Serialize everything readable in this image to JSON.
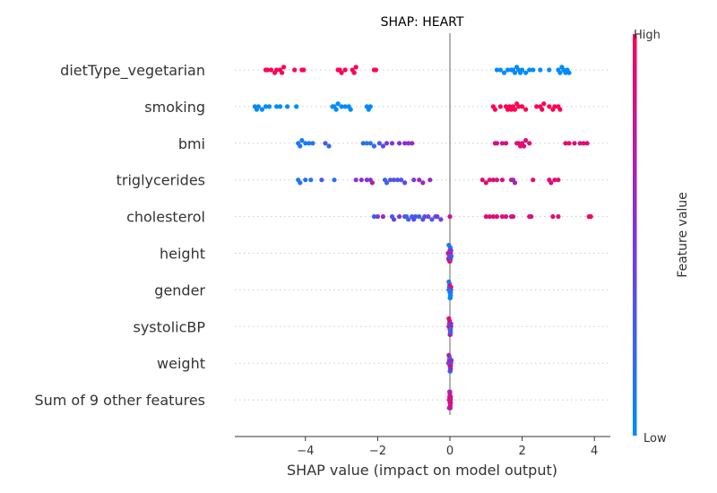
{
  "chart_data": {
    "type": "scatter",
    "title": "SHAP: HEART",
    "xlabel": "SHAP value (impact on model output)",
    "xlim": [
      -5.9,
      4.45
    ],
    "xticks": [
      -4,
      -2,
      0,
      2,
      4
    ],
    "xtick_labels": [
      "−4",
      "−2",
      "0",
      "2",
      "4"
    ],
    "grid": false,
    "colorbar": {
      "label": "Feature value",
      "high_label": "High",
      "low_label": "Low",
      "low_color": "#008bfb",
      "high_color": "#ff0052"
    },
    "features": [
      {
        "name": "dietType_vegetarian",
        "points": [
          [
            -5.1,
            1
          ],
          [
            -5.05,
            1
          ],
          [
            -4.95,
            0.95
          ],
          [
            -4.85,
            1
          ],
          [
            -4.8,
            1
          ],
          [
            -4.7,
            1
          ],
          [
            -4.65,
            0.95
          ],
          [
            -4.6,
            1
          ],
          [
            -4.3,
            1
          ],
          [
            -4.1,
            0.95
          ],
          [
            -4.05,
            1
          ],
          [
            -3.1,
            1
          ],
          [
            -3.05,
            1
          ],
          [
            -3.0,
            0.95
          ],
          [
            -2.9,
            1
          ],
          [
            -2.7,
            1
          ],
          [
            -2.65,
            1
          ],
          [
            -2.6,
            0.95
          ],
          [
            -2.1,
            1
          ],
          [
            -2.05,
            1
          ],
          [
            1.3,
            0
          ],
          [
            1.4,
            0
          ],
          [
            1.5,
            0
          ],
          [
            1.6,
            0
          ],
          [
            1.7,
            0
          ],
          [
            1.75,
            0
          ],
          [
            1.8,
            0
          ],
          [
            1.85,
            0
          ],
          [
            1.9,
            0
          ],
          [
            1.95,
            0
          ],
          [
            2.0,
            0
          ],
          [
            2.1,
            0
          ],
          [
            2.2,
            0
          ],
          [
            2.3,
            0
          ],
          [
            2.5,
            0
          ],
          [
            2.75,
            0
          ],
          [
            3.0,
            0
          ],
          [
            3.05,
            0
          ],
          [
            3.1,
            0
          ],
          [
            3.15,
            0
          ],
          [
            3.2,
            0
          ],
          [
            3.25,
            0
          ],
          [
            3.3,
            0
          ]
        ]
      },
      {
        "name": "smoking",
        "points": [
          [
            -5.4,
            0
          ],
          [
            -5.35,
            0
          ],
          [
            -5.3,
            0
          ],
          [
            -5.2,
            0
          ],
          [
            -5.1,
            0
          ],
          [
            -5.0,
            0
          ],
          [
            -4.8,
            0
          ],
          [
            -4.7,
            0
          ],
          [
            -4.5,
            0
          ],
          [
            -4.25,
            0
          ],
          [
            -3.25,
            0
          ],
          [
            -3.2,
            0
          ],
          [
            -3.15,
            0
          ],
          [
            -3.1,
            0
          ],
          [
            -3.0,
            0
          ],
          [
            -2.9,
            0
          ],
          [
            -2.8,
            0
          ],
          [
            -2.75,
            0
          ],
          [
            -2.3,
            0
          ],
          [
            -2.25,
            0
          ],
          [
            -2.2,
            0
          ],
          [
            1.2,
            1
          ],
          [
            1.25,
            1
          ],
          [
            1.4,
            1
          ],
          [
            1.55,
            1
          ],
          [
            1.6,
            1
          ],
          [
            1.65,
            1
          ],
          [
            1.7,
            1
          ],
          [
            1.75,
            1
          ],
          [
            1.8,
            1
          ],
          [
            1.85,
            1
          ],
          [
            1.9,
            1
          ],
          [
            2.0,
            1
          ],
          [
            2.1,
            1
          ],
          [
            2.4,
            1
          ],
          [
            2.5,
            1
          ],
          [
            2.55,
            0.95
          ],
          [
            2.6,
            1
          ],
          [
            2.75,
            1
          ],
          [
            2.85,
            1
          ],
          [
            2.9,
            1
          ],
          [
            3.0,
            1
          ],
          [
            3.05,
            1
          ]
        ]
      },
      {
        "name": "bmi",
        "points": [
          [
            -4.2,
            0.1
          ],
          [
            -4.15,
            0.15
          ],
          [
            -4.1,
            0.1
          ],
          [
            -4.0,
            0.15
          ],
          [
            -3.9,
            0.1
          ],
          [
            -3.8,
            0.15
          ],
          [
            -3.45,
            0.3
          ],
          [
            -3.35,
            0.2
          ],
          [
            -2.4,
            0.2
          ],
          [
            -2.3,
            0.15
          ],
          [
            -2.2,
            0.15
          ],
          [
            -2.1,
            0.2
          ],
          [
            -1.95,
            0.3
          ],
          [
            -1.85,
            0.4
          ],
          [
            -1.75,
            0.45
          ],
          [
            -1.6,
            0.5
          ],
          [
            -1.4,
            0.55
          ],
          [
            -1.25,
            0.6
          ],
          [
            -1.15,
            0.55
          ],
          [
            -1.05,
            0.6
          ],
          [
            1.25,
            0.9
          ],
          [
            1.3,
            0.85
          ],
          [
            1.45,
            0.8
          ],
          [
            1.55,
            0.85
          ],
          [
            1.85,
            0.9
          ],
          [
            1.9,
            0.85
          ],
          [
            1.95,
            0.9
          ],
          [
            2.0,
            0.85
          ],
          [
            2.05,
            0.9
          ],
          [
            2.1,
            0.85
          ],
          [
            2.2,
            0.9
          ],
          [
            3.2,
            0.9
          ],
          [
            3.3,
            0.95
          ],
          [
            3.45,
            0.85
          ],
          [
            3.6,
            0.8
          ],
          [
            3.7,
            0.85
          ],
          [
            3.8,
            0.9
          ]
        ]
      },
      {
        "name": "triglycerides",
        "points": [
          [
            -4.2,
            0.1
          ],
          [
            -4.15,
            0.15
          ],
          [
            -4.0,
            0.2
          ],
          [
            -3.85,
            0.1
          ],
          [
            -3.55,
            0.3
          ],
          [
            -3.2,
            0.15
          ],
          [
            -2.6,
            0.5
          ],
          [
            -2.45,
            0.6
          ],
          [
            -2.3,
            0.5
          ],
          [
            -2.2,
            0.55
          ],
          [
            -2.15,
            0.7
          ],
          [
            -1.8,
            0.2
          ],
          [
            -1.75,
            0.25
          ],
          [
            -1.65,
            0.3
          ],
          [
            -1.55,
            0.35
          ],
          [
            -1.45,
            0.3
          ],
          [
            -1.35,
            0.35
          ],
          [
            -1.25,
            0.4
          ],
          [
            -1.0,
            0.5
          ],
          [
            -0.85,
            0.6
          ],
          [
            -0.75,
            0.65
          ],
          [
            -0.55,
            0.6
          ],
          [
            0.9,
            0.9
          ],
          [
            1.0,
            0.85
          ],
          [
            1.1,
            0.9
          ],
          [
            1.2,
            0.85
          ],
          [
            1.3,
            0.9
          ],
          [
            1.45,
            0.85
          ],
          [
            1.7,
            0.7
          ],
          [
            1.75,
            0.65
          ],
          [
            1.8,
            0.65
          ],
          [
            2.3,
            0.9
          ],
          [
            2.75,
            0.9
          ],
          [
            2.8,
            0.85
          ],
          [
            2.9,
            0.9
          ],
          [
            3.0,
            0.85
          ]
        ]
      },
      {
        "name": "cholesterol",
        "points": [
          [
            -2.1,
            0.2
          ],
          [
            -2.0,
            0.5
          ],
          [
            -1.85,
            0.6
          ],
          [
            -1.6,
            0.3
          ],
          [
            -1.55,
            0.4
          ],
          [
            -1.4,
            0.5
          ],
          [
            -1.25,
            0.45
          ],
          [
            -1.2,
            0.2
          ],
          [
            -1.15,
            0.25
          ],
          [
            -1.05,
            0.3
          ],
          [
            -1.0,
            0.35
          ],
          [
            -0.95,
            0.3
          ],
          [
            -0.85,
            0.25
          ],
          [
            -0.75,
            0.35
          ],
          [
            -0.7,
            0.4
          ],
          [
            -0.6,
            0.45
          ],
          [
            -0.5,
            0.3
          ],
          [
            -0.4,
            0.35
          ],
          [
            -0.35,
            0.5
          ],
          [
            -0.25,
            0.4
          ],
          [
            0.0,
            0.8
          ],
          [
            1.0,
            0.9
          ],
          [
            1.1,
            0.85
          ],
          [
            1.2,
            0.9
          ],
          [
            1.3,
            0.85
          ],
          [
            1.45,
            0.9
          ],
          [
            1.55,
            0.85
          ],
          [
            1.7,
            0.8
          ],
          [
            1.75,
            0.85
          ],
          [
            2.2,
            0.9
          ],
          [
            2.25,
            0.85
          ],
          [
            2.85,
            0.9
          ],
          [
            3.0,
            0.85
          ],
          [
            3.85,
            0.95
          ],
          [
            3.9,
            0.95
          ]
        ]
      },
      {
        "name": "height",
        "points": [
          [
            -0.05,
            0.8
          ],
          [
            -0.02,
            0.3
          ],
          [
            0.0,
            0.6
          ],
          [
            0.02,
            0.9
          ],
          [
            0.04,
            0.2
          ],
          [
            -0.04,
            0.7
          ],
          [
            0.01,
            0.1
          ],
          [
            -0.01,
            0.85
          ],
          [
            0.03,
            0.5
          ],
          [
            -0.03,
            0.15
          ],
          [
            0.0,
            0.95
          ],
          [
            0.02,
            0.4
          ]
        ]
      },
      {
        "name": "gender",
        "points": [
          [
            -0.03,
            0.2
          ],
          [
            0.0,
            0.0
          ],
          [
            0.03,
            0.1
          ],
          [
            -0.02,
            0.05
          ],
          [
            0.01,
            0.0
          ],
          [
            0.02,
            0.15
          ],
          [
            -0.01,
            0.9
          ],
          [
            0.03,
            0.8
          ],
          [
            0.0,
            0.0
          ],
          [
            -0.03,
            0.1
          ],
          [
            0.01,
            0.05
          ],
          [
            0.02,
            0.0
          ]
        ]
      },
      {
        "name": "systolicBP",
        "points": [
          [
            -0.03,
            0.8
          ],
          [
            0.0,
            0.9
          ],
          [
            0.03,
            0.7
          ],
          [
            -0.02,
            0.2
          ],
          [
            0.01,
            0.95
          ],
          [
            0.02,
            0.15
          ],
          [
            -0.01,
            0.85
          ],
          [
            0.03,
            0.6
          ],
          [
            0.0,
            0.1
          ],
          [
            -0.03,
            0.9
          ],
          [
            0.01,
            0.75
          ],
          [
            0.02,
            0.3
          ]
        ]
      },
      {
        "name": "weight",
        "points": [
          [
            -0.04,
            0.3
          ],
          [
            0.0,
            0.5
          ],
          [
            0.03,
            0.2
          ],
          [
            -0.02,
            0.8
          ],
          [
            0.01,
            0.4
          ],
          [
            0.02,
            0.9
          ],
          [
            -0.01,
            0.1
          ],
          [
            0.04,
            0.6
          ],
          [
            0.0,
            0.0
          ],
          [
            -0.03,
            0.7
          ],
          [
            0.01,
            0.3
          ],
          [
            0.02,
            0.5
          ]
        ]
      },
      {
        "name": "Sum of 9 other features",
        "points": [
          [
            -0.02,
            0.9
          ],
          [
            0.0,
            0.8
          ],
          [
            0.02,
            0.6
          ],
          [
            -0.01,
            0.95
          ],
          [
            0.01,
            0.85
          ],
          [
            0.0,
            0.7
          ],
          [
            0.02,
            0.9
          ],
          [
            -0.02,
            0.5
          ],
          [
            0.0,
            1.0
          ],
          [
            0.01,
            0.75
          ],
          [
            -0.01,
            0.65
          ],
          [
            0.02,
            0.85
          ]
        ]
      }
    ]
  }
}
